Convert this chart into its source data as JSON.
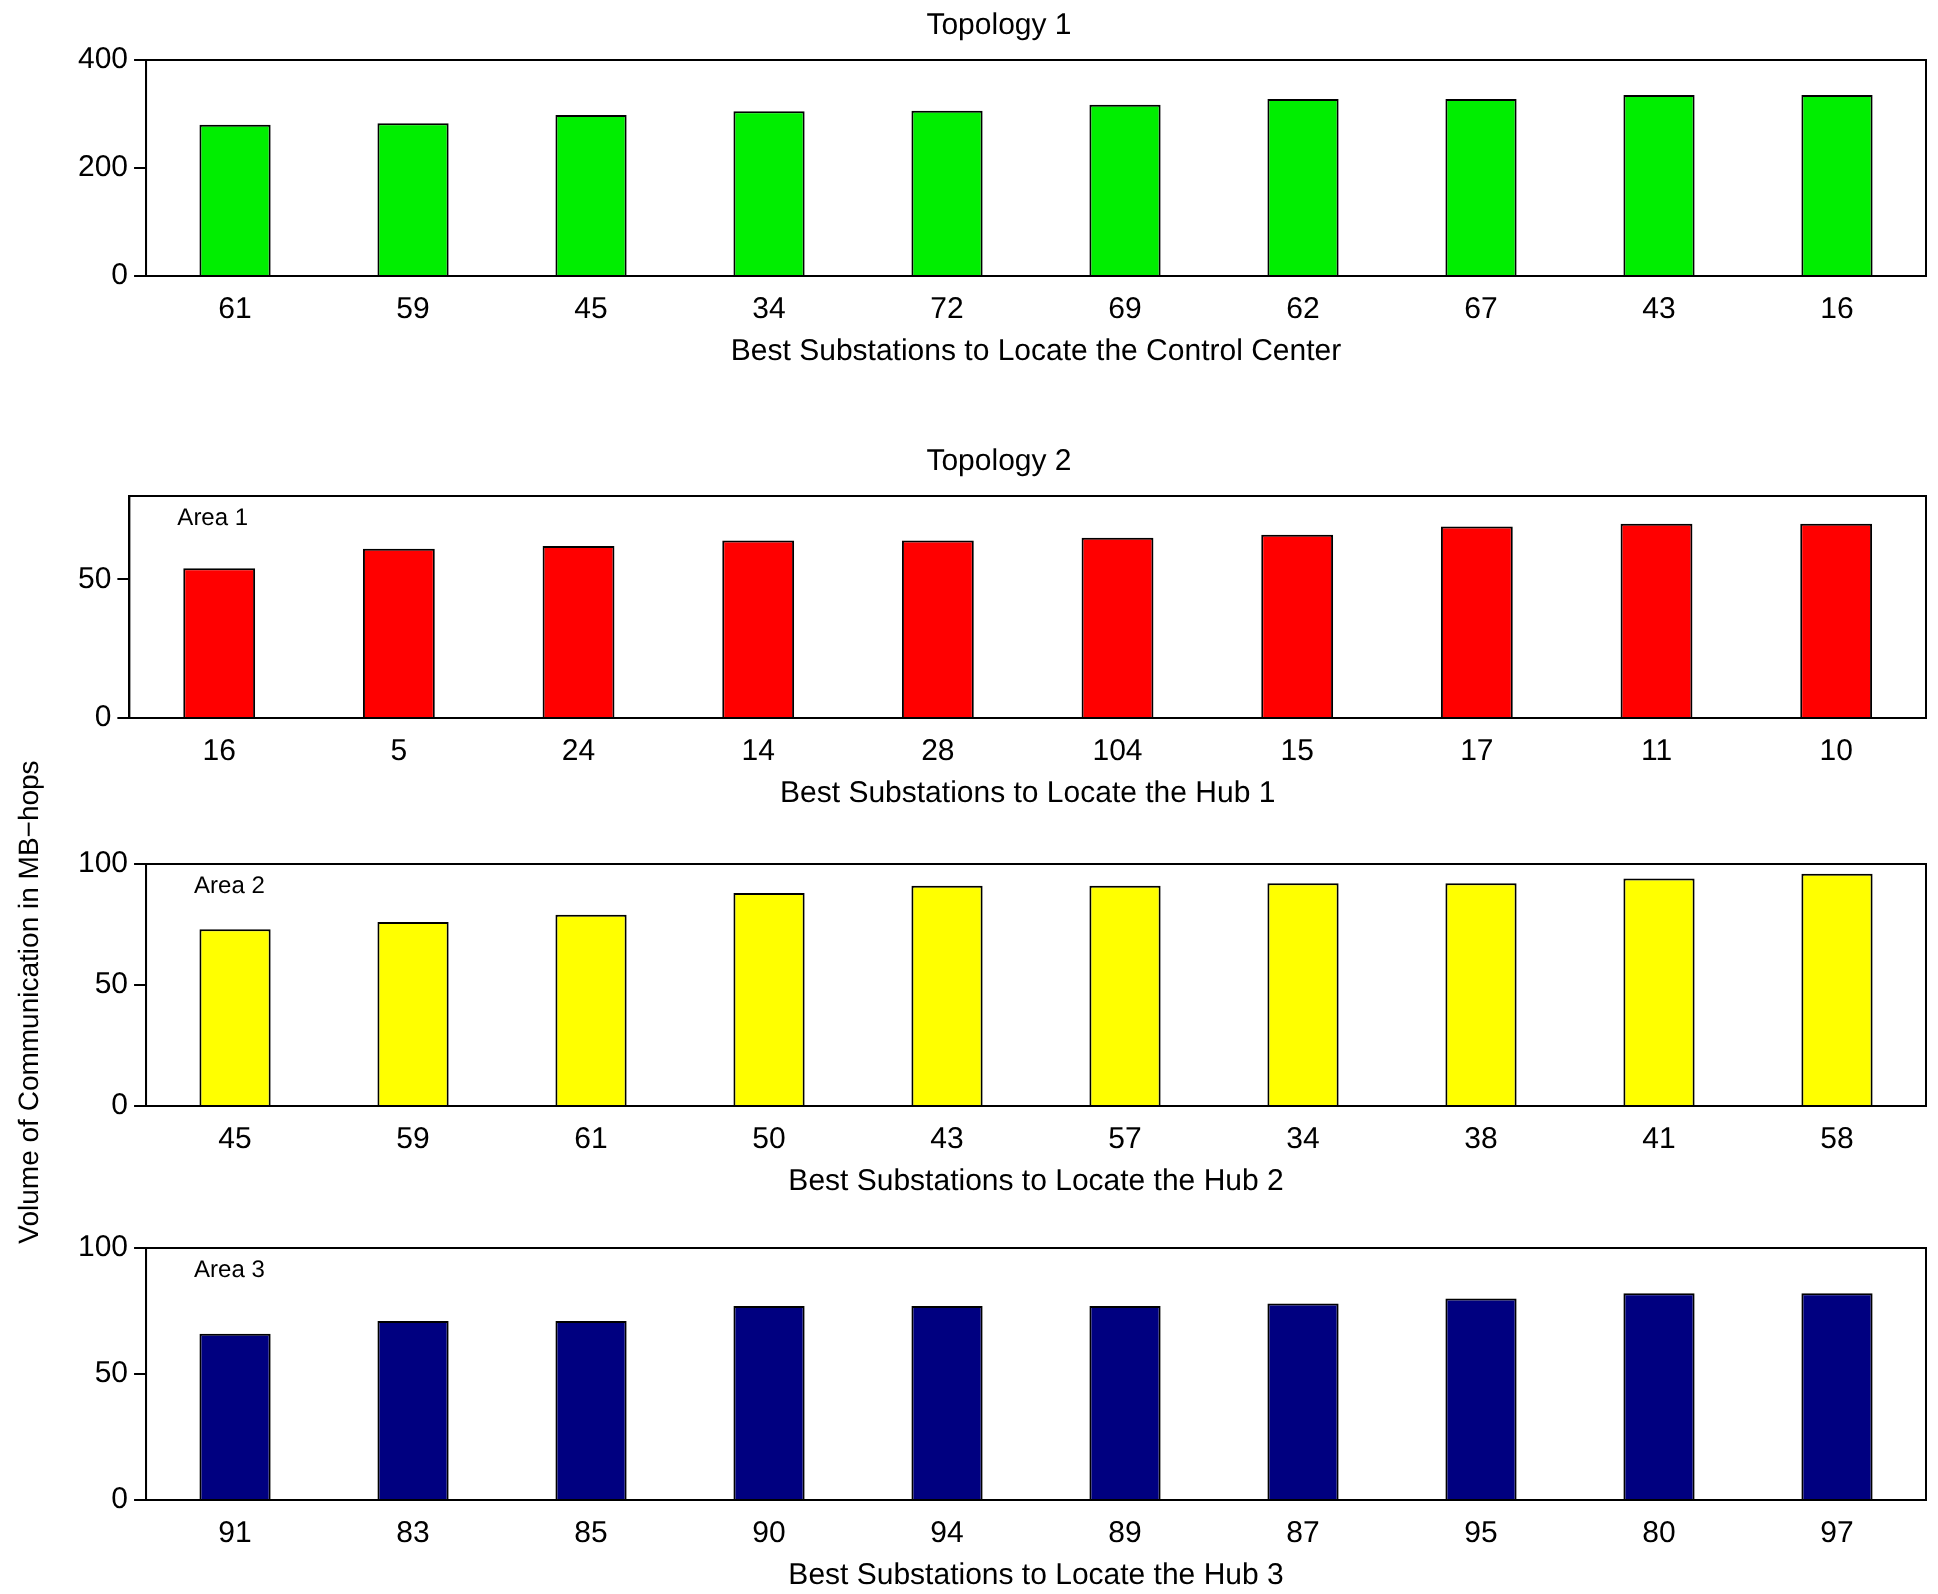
{
  "chart_data": [
    {
      "type": "bar",
      "title": "Topology 1",
      "xlabel": "Best Substations to Locate the Control Center",
      "categories": [
        "61",
        "59",
        "45",
        "34",
        "72",
        "69",
        "62",
        "67",
        "43",
        "16"
      ],
      "values": [
        280,
        283,
        298,
        305,
        306,
        317,
        328,
        328,
        335,
        335
      ],
      "color": "#00ee00",
      "ylim": [
        0,
        400
      ],
      "yticks": [
        0,
        200,
        400
      ],
      "grid": false
    },
    {
      "type": "bar",
      "title": "Topology 2",
      "ylabel": "Volume of Communication in MB−hops",
      "xlabel": "Best Substations to Locate the Hub 1",
      "annotations": [
        "Area 1"
      ],
      "categories": [
        "16",
        "5",
        "24",
        "14",
        "28",
        "104",
        "15",
        "17",
        "11",
        "10"
      ],
      "values": [
        54,
        61,
        62,
        64,
        64,
        65,
        66,
        69,
        70,
        70
      ],
      "color": "#ff0000",
      "ylim": [
        0,
        80
      ],
      "yticks": [
        0,
        50
      ],
      "grid": false
    },
    {
      "type": "bar",
      "xlabel": "Best Substations to Locate the Hub 2",
      "annotations": [
        "Area 2"
      ],
      "categories": [
        "45",
        "59",
        "61",
        "50",
        "43",
        "57",
        "34",
        "38",
        "41",
        "58"
      ],
      "values": [
        73,
        76,
        79,
        88,
        91,
        91,
        92,
        92,
        94,
        96
      ],
      "color": "#ffff00",
      "ylim": [
        0,
        100
      ],
      "yticks": [
        0,
        50,
        100
      ],
      "grid": false
    },
    {
      "type": "bar",
      "xlabel": "Best Substations to Locate the Hub 3",
      "annotations": [
        "Area 3"
      ],
      "categories": [
        "91",
        "83",
        "85",
        "90",
        "94",
        "89",
        "87",
        "95",
        "80",
        "97"
      ],
      "values": [
        66,
        71,
        71,
        77,
        77,
        77,
        78,
        80,
        82,
        82
      ],
      "color": "#000080",
      "ylim": [
        0,
        100
      ],
      "yticks": [
        0,
        50,
        100
      ],
      "grid": false
    }
  ]
}
